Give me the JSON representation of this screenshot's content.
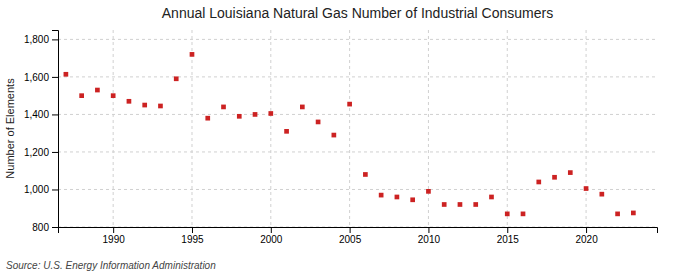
{
  "chart_data": {
    "type": "scatter",
    "title": "Annual Louisiana Natural Gas Number of Industrial Consumers",
    "y_label": "Number of Elements",
    "source": "Source: U.S. Energy Information Administration",
    "x": [
      1987,
      1988,
      1989,
      1990,
      1991,
      1992,
      1993,
      1994,
      1995,
      1996,
      1997,
      1998,
      1999,
      2000,
      2001,
      2002,
      2003,
      2004,
      2005,
      2006,
      2007,
      2008,
      2009,
      2010,
      2011,
      2012,
      2013,
      2014,
      2015,
      2016,
      2017,
      2018,
      2019,
      2020,
      2021,
      2022,
      2023
    ],
    "values": [
      1614,
      1500,
      1530,
      1500,
      1470,
      1450,
      1445,
      1590,
      1720,
      1380,
      1440,
      1390,
      1400,
      1405,
      1310,
      1440,
      1360,
      1290,
      1455,
      1080,
      970,
      960,
      945,
      990,
      920,
      920,
      920,
      960,
      870,
      870,
      1040,
      1065,
      1090,
      1005,
      975,
      870,
      875
    ],
    "color": "#cc2222",
    "marker": "square",
    "grid": true,
    "xlim": [
      1986.5,
      2024.5
    ],
    "xticks": [
      1990,
      1995,
      2000,
      2005,
      2010,
      2015,
      2020
    ],
    "ylim": [
      800,
      1850
    ],
    "yticks": [
      800,
      {
        "value": 1000,
        "label": "1,000"
      },
      {
        "value": 1200,
        "label": "1,200"
      },
      {
        "value": 1400,
        "label": "1,400"
      },
      {
        "value": 1600,
        "label": "1,600"
      },
      {
        "value": 1800,
        "label": "1,800"
      }
    ]
  }
}
